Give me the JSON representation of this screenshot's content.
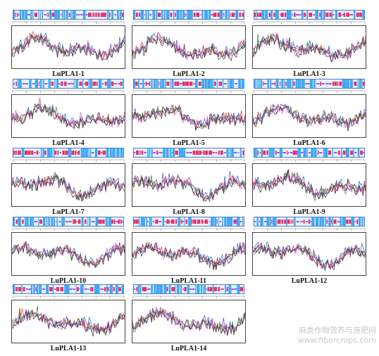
{
  "figure": {
    "panels": [
      {
        "id": "p1",
        "label": "LuPLA1-1",
        "seed": 11
      },
      {
        "id": "p2",
        "label": "LuPLA1-2",
        "seed": 23
      },
      {
        "id": "p3",
        "label": "LuPLA1-3",
        "seed": 37
      },
      {
        "id": "p4",
        "label": "LuPLA1-4",
        "seed": 41
      },
      {
        "id": "p5",
        "label": "LuPLA1-5",
        "seed": 53
      },
      {
        "id": "p6",
        "label": "LuPLA1-6",
        "seed": 67
      },
      {
        "id": "p7",
        "label": "LuPLA1-7",
        "seed": 71
      },
      {
        "id": "p8",
        "label": "LuPLA1-8",
        "seed": 83
      },
      {
        "id": "p9",
        "label": "LuPLA1-9",
        "seed": 97
      },
      {
        "id": "p10",
        "label": "LuPLA1-10",
        "seed": 101
      },
      {
        "id": "p11",
        "label": "LuPLA1-11",
        "seed": 113
      },
      {
        "id": "p12",
        "label": "LuPLA1-12",
        "seed": 127
      },
      {
        "id": "p13",
        "label": "LuPLA1-13",
        "seed": 131
      },
      {
        "id": "p14",
        "label": "LuPLA1-14",
        "seed": 149
      }
    ],
    "colors": {
      "helix": "#e6336b",
      "strand": "#3fa9f5",
      "coil": "#9b59d6",
      "line_series": [
        "#2a5bd7",
        "#e03030",
        "#2e8b2e",
        "#d64bd6",
        "#333333"
      ]
    }
  },
  "watermark": {
    "line1": "麻类作物营养与施肥网",
    "line2": "www.fibercrops.com"
  }
}
